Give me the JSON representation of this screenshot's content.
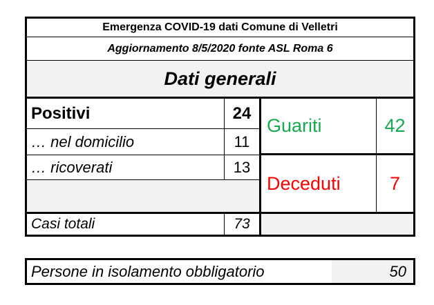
{
  "colors": {
    "accent_green": "#16a94f",
    "accent_red": "#f80000",
    "fill_gray": "#f2f2f2",
    "border_black": "#000000"
  },
  "table": {
    "title": "Emergenza COVID-19 dati Comune di Velletri",
    "subtitle": "Aggiornamento 8/5/2020 fonte ASL Roma 6",
    "section_header": "Dati generali",
    "rows": {
      "positivi": {
        "label": "Positivi",
        "value": "24"
      },
      "nel_domicilio": {
        "label": "… nel domicilio",
        "value": "11"
      },
      "ricoverati": {
        "label": "… ricoverati",
        "value": "13"
      },
      "guariti": {
        "label": "Guariti",
        "value": "42"
      },
      "deceduti": {
        "label": "Deceduti",
        "value": "7"
      },
      "casi_totali": {
        "label": "Casi totali",
        "value": "73"
      }
    }
  },
  "isolation_table": {
    "label": "Persone in isolamento obbligatorio",
    "value": "50"
  }
}
